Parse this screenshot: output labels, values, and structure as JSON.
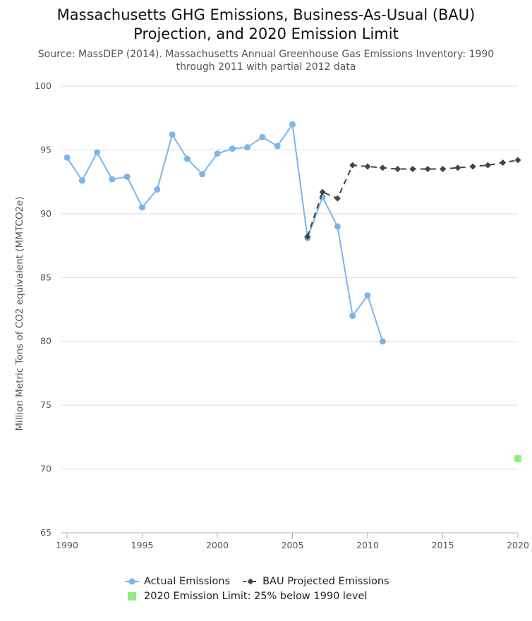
{
  "title_lines": [
    "Massachusetts GHG Emissions, Business-As-Usual (BAU)",
    "Projection, and 2020 Emission Limit"
  ],
  "subtitle_lines": [
    "Source: MassDEP (2014). Massachusetts Annual Greenhouse Gas Emissions Inventory: 1990",
    "through 2011 with partial 2012 data"
  ],
  "chart_data": {
    "type": "line",
    "title": "Massachusetts GHG Emissions, Business-As-Usual (BAU) Projection, and 2020 Emission Limit",
    "subtitle": "Source: MassDEP (2014). Massachusetts Annual Greenhouse Gas Emissions Inventory: 1990 through 2011 with partial 2012 data",
    "xlabel": "",
    "ylabel": "Million Metric Tons of CO2 equivalent (MMTCO2e)",
    "xlim": [
      1990,
      2020
    ],
    "ylim": [
      65,
      100
    ],
    "x_ticks": [
      1990,
      1995,
      2000,
      2005,
      2010,
      2015,
      2020
    ],
    "y_ticks": [
      65,
      70,
      75,
      80,
      85,
      90,
      95,
      100
    ],
    "grid": "horizontal",
    "legend_position": "bottom",
    "series": [
      {
        "name": "Actual Emissions",
        "color": "#7cb5ec",
        "marker": "circle",
        "line_style": "solid",
        "x": [
          1990,
          1991,
          1992,
          1993,
          1994,
          1995,
          1996,
          1997,
          1998,
          1999,
          2000,
          2001,
          2002,
          2003,
          2004,
          2005,
          2006,
          2007,
          2008,
          2009,
          2010,
          2011
        ],
        "y": [
          94.4,
          92.6,
          94.8,
          92.7,
          92.9,
          90.5,
          91.9,
          96.2,
          94.3,
          93.1,
          94.7,
          95.1,
          95.2,
          96.0,
          95.3,
          97.0,
          88.1,
          91.3,
          89.0,
          82.0,
          83.6,
          80.0
        ]
      },
      {
        "name": "BAU Projected Emissions",
        "color": "#434348",
        "marker": "diamond",
        "line_style": "dashed",
        "x": [
          2006,
          2007,
          2008,
          2009,
          2010,
          2011,
          2012,
          2013,
          2014,
          2015,
          2016,
          2017,
          2018,
          2019,
          2020
        ],
        "y": [
          88.2,
          91.7,
          91.2,
          93.8,
          93.7,
          93.6,
          93.5,
          93.5,
          93.5,
          93.5,
          93.6,
          93.7,
          93.8,
          94.0,
          94.2
        ]
      },
      {
        "name": "2020 Emission Limit: 25% below 1990 level",
        "color": "#90ed7d",
        "marker": "square",
        "line_style": "none",
        "x": [
          2020
        ],
        "y": [
          70.8
        ]
      }
    ]
  }
}
